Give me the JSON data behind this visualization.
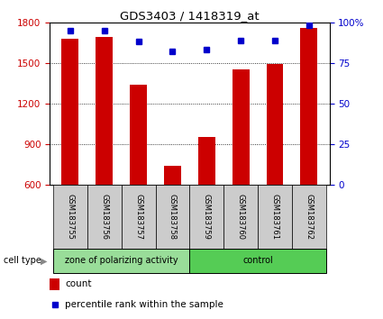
{
  "title": "GDS3403 / 1418319_at",
  "samples": [
    "GSM183755",
    "GSM183756",
    "GSM183757",
    "GSM183758",
    "GSM183759",
    "GSM183760",
    "GSM183761",
    "GSM183762"
  ],
  "counts": [
    1680,
    1690,
    1340,
    740,
    955,
    1450,
    1490,
    1760
  ],
  "percentiles": [
    95,
    95,
    88,
    82,
    83,
    89,
    89,
    98
  ],
  "ylim_left": [
    600,
    1800
  ],
  "ylim_right": [
    0,
    100
  ],
  "yticks_left": [
    600,
    900,
    1200,
    1500,
    1800
  ],
  "yticks_right": [
    0,
    25,
    50,
    75,
    100
  ],
  "bar_color": "#cc0000",
  "dot_color": "#0000cc",
  "group1_label": "zone of polarizing activity",
  "group2_label": "control",
  "group1_indices": [
    0,
    1,
    2,
    3
  ],
  "group2_indices": [
    4,
    5,
    6,
    7
  ],
  "group1_color": "#99dd99",
  "group2_color": "#55cc55",
  "cell_type_label": "cell type",
  "legend_count_label": "count",
  "legend_percentile_label": "percentile rank within the sample",
  "bar_color_legend": "#cc0000",
  "dot_color_legend": "#0000cc",
  "tick_label_color_left": "#cc0000",
  "tick_label_color_right": "#0000cc",
  "bar_width": 0.5,
  "fig_width": 4.25,
  "fig_height": 3.54,
  "dpi": 100
}
